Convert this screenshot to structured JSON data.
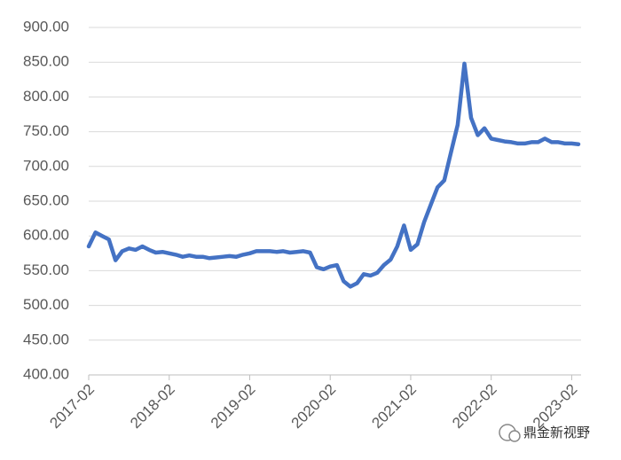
{
  "chart_data": {
    "type": "line",
    "categories": [
      "2017-02",
      null,
      null,
      null,
      null,
      null,
      null,
      null,
      null,
      null,
      null,
      null,
      "2018-02",
      null,
      null,
      null,
      null,
      null,
      null,
      null,
      null,
      null,
      null,
      null,
      "2019-02",
      null,
      null,
      null,
      null,
      null,
      null,
      null,
      null,
      null,
      null,
      null,
      "2020-02",
      null,
      null,
      null,
      null,
      null,
      null,
      null,
      null,
      null,
      null,
      null,
      "2021-02",
      null,
      null,
      null,
      null,
      null,
      null,
      null,
      null,
      null,
      null,
      null,
      "2022-02",
      null,
      null,
      null,
      null,
      null,
      null,
      null,
      null,
      null,
      null,
      null,
      "2023-02",
      null
    ],
    "series": [
      {
        "color": "#4472c4",
        "values": [
          585,
          605,
          600,
          595,
          565,
          578,
          582,
          580,
          585,
          580,
          576,
          577,
          575,
          573,
          570,
          572,
          570,
          570,
          568,
          569,
          570,
          571,
          570,
          573,
          575,
          578,
          578,
          578,
          577,
          578,
          576,
          577,
          578,
          576,
          555,
          552,
          556,
          558,
          535,
          527,
          532,
          545,
          543,
          547,
          558,
          566,
          585,
          615,
          580,
          588,
          620,
          645,
          670,
          680,
          720,
          760,
          848,
          770,
          745,
          755,
          740,
          738,
          736,
          735,
          733,
          733,
          735,
          735,
          740,
          735,
          735,
          733,
          733,
          732
        ]
      }
    ],
    "ylim": [
      400,
      900
    ],
    "yticks": [
      {
        "value": 400,
        "label": "400.00"
      },
      {
        "value": 450,
        "label": "450.00"
      },
      {
        "value": 500,
        "label": "500.00"
      },
      {
        "value": 550,
        "label": "550.00"
      },
      {
        "value": 600,
        "label": "600.00"
      },
      {
        "value": 650,
        "label": "650.00"
      },
      {
        "value": 700,
        "label": "700.00"
      },
      {
        "value": 750,
        "label": "750.00"
      },
      {
        "value": 800,
        "label": "800.00"
      },
      {
        "value": 850,
        "label": "850.00"
      },
      {
        "value": 900,
        "label": "900.00"
      }
    ],
    "grid": true,
    "watermark": "鼎金新视野"
  }
}
